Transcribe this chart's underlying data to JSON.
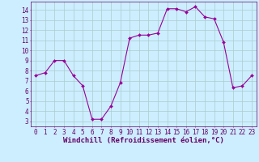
{
  "x": [
    0,
    1,
    2,
    3,
    4,
    5,
    6,
    7,
    8,
    9,
    10,
    11,
    12,
    13,
    14,
    15,
    16,
    17,
    18,
    19,
    20,
    21,
    22,
    23
  ],
  "y": [
    7.5,
    7.8,
    9.0,
    9.0,
    7.5,
    6.5,
    3.2,
    3.2,
    4.5,
    6.8,
    11.2,
    11.5,
    11.5,
    11.7,
    14.1,
    14.1,
    13.8,
    14.3,
    13.3,
    13.1,
    10.8,
    6.3,
    6.5,
    7.5
  ],
  "line_color": "#990099",
  "marker": "D",
  "marker_size": 2.0,
  "bg_color": "#cceeff",
  "grid_color": "#aacccc",
  "xlabel": "Windchill (Refroidissement éolien,°C)",
  "xlim": [
    -0.5,
    23.5
  ],
  "ylim": [
    2.5,
    14.8
  ],
  "yticks": [
    3,
    4,
    5,
    6,
    7,
    8,
    9,
    10,
    11,
    12,
    13,
    14
  ],
  "xticks": [
    0,
    1,
    2,
    3,
    4,
    5,
    6,
    7,
    8,
    9,
    10,
    11,
    12,
    13,
    14,
    15,
    16,
    17,
    18,
    19,
    20,
    21,
    22,
    23
  ],
  "tick_color": "#660066",
  "label_fontsize": 6.5,
  "tick_fontsize": 5.5,
  "linewidth": 0.8
}
